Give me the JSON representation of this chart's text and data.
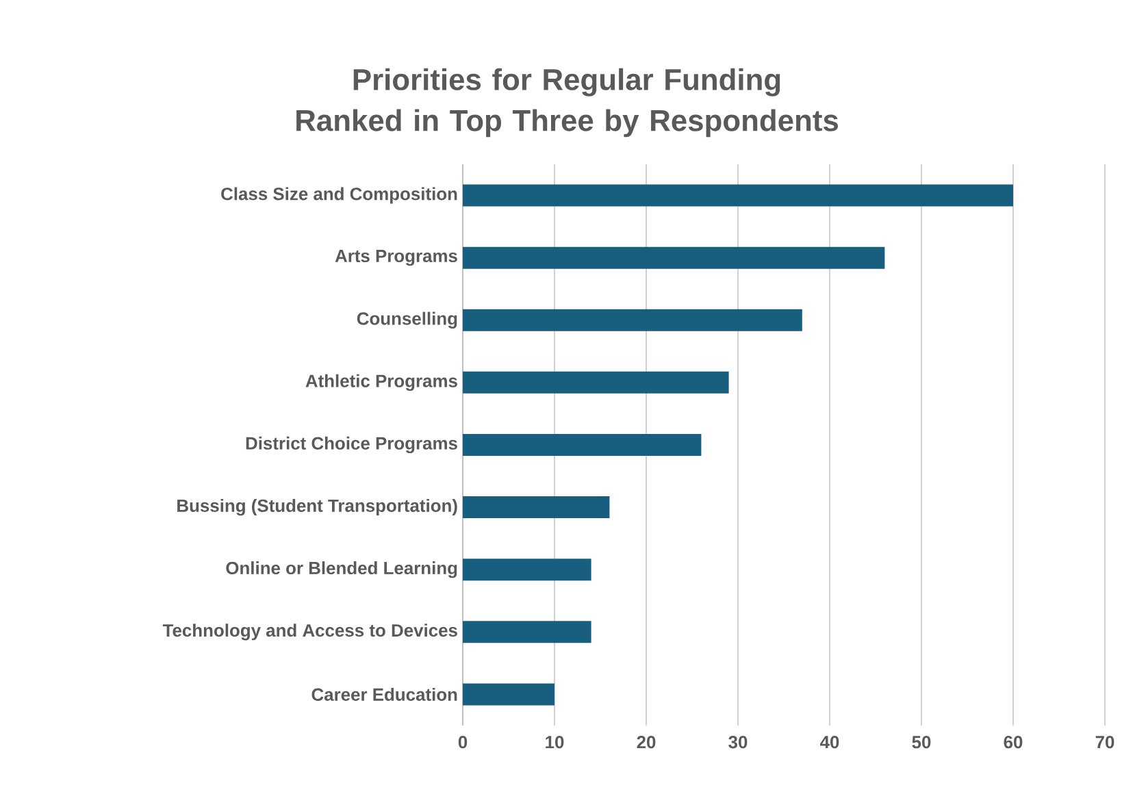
{
  "chart_data": {
    "type": "bar",
    "orientation": "horizontal",
    "title": "Priorities for Regular Funding Ranked in Top Three by Respondents",
    "categories": [
      "Class Size and Composition",
      "Arts Programs",
      "Counselling",
      "Athletic Programs",
      "District Choice Programs",
      "Bussing (Student Transportation)",
      "Online or Blended Learning",
      "Technology and Access to Devices",
      "Career Education"
    ],
    "values": [
      60,
      46,
      37,
      29,
      26,
      16,
      14,
      14,
      10
    ],
    "color": "#175e7f",
    "xlim": [
      0,
      70
    ],
    "xticks": [
      0,
      10,
      20,
      30,
      40,
      50,
      60,
      70
    ],
    "grid": "x"
  }
}
